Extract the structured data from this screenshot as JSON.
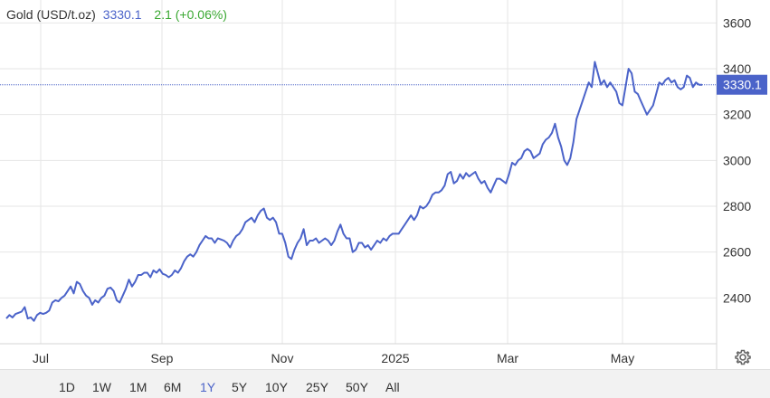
{
  "header": {
    "name": "Gold (USD/t.oz)",
    "last": "3330.1",
    "change": "2.1 (+0.06%)"
  },
  "colors": {
    "line": "#4b63c9",
    "change_positive": "#3aa832",
    "grid": "#e6e6e6",
    "range_bar": "#f2f2f2"
  },
  "ranges": {
    "items": [
      "1D",
      "1W",
      "1M",
      "6M",
      "1Y",
      "5Y",
      "10Y",
      "25Y",
      "50Y",
      "All"
    ],
    "active": "1Y"
  },
  "icons": {
    "settings": "gear-icon"
  },
  "chart_data": {
    "type": "line",
    "title": "Gold (USD/t.oz)",
    "x_ticks": [
      "Jul",
      "Sep",
      "Nov",
      "2025",
      "Mar",
      "May"
    ],
    "y_ticks": [
      "2400",
      "2600",
      "2800",
      "3000",
      "3200",
      "3400",
      "3600"
    ],
    "ylim": [
      2200,
      3700
    ],
    "grid": true,
    "last_value_label": "3330.1",
    "last_value": 3330.1,
    "series": [
      {
        "values": [
          2310,
          2325,
          2315,
          2330,
          2335,
          2340,
          2360,
          2310,
          2315,
          2300,
          2325,
          2335,
          2330,
          2335,
          2345,
          2380,
          2390,
          2385,
          2400,
          2410,
          2430,
          2450,
          2420,
          2470,
          2460,
          2430,
          2410,
          2400,
          2370,
          2390,
          2380,
          2400,
          2410,
          2440,
          2445,
          2430,
          2390,
          2380,
          2410,
          2440,
          2480,
          2450,
          2470,
          2500,
          2500,
          2510,
          2510,
          2490,
          2520,
          2510,
          2525,
          2505,
          2500,
          2490,
          2500,
          2520,
          2510,
          2530,
          2560,
          2580,
          2590,
          2580,
          2600,
          2630,
          2650,
          2670,
          2660,
          2660,
          2640,
          2660,
          2655,
          2650,
          2640,
          2620,
          2650,
          2670,
          2680,
          2700,
          2730,
          2740,
          2750,
          2730,
          2760,
          2780,
          2790,
          2750,
          2740,
          2750,
          2730,
          2680,
          2680,
          2640,
          2580,
          2570,
          2610,
          2640,
          2660,
          2700,
          2630,
          2650,
          2650,
          2660,
          2640,
          2650,
          2660,
          2650,
          2630,
          2650,
          2690,
          2720,
          2680,
          2660,
          2660,
          2600,
          2610,
          2640,
          2640,
          2620,
          2630,
          2610,
          2630,
          2650,
          2640,
          2660,
          2650,
          2670,
          2680,
          2680,
          2680,
          2700,
          2720,
          2740,
          2760,
          2740,
          2760,
          2800,
          2790,
          2800,
          2820,
          2850,
          2860,
          2860,
          2870,
          2890,
          2940,
          2950,
          2900,
          2910,
          2940,
          2920,
          2945,
          2930,
          2940,
          2950,
          2920,
          2900,
          2910,
          2880,
          2860,
          2890,
          2920,
          2920,
          2910,
          2900,
          2940,
          2990,
          2980,
          3000,
          3010,
          3040,
          3050,
          3040,
          3010,
          3020,
          3030,
          3070,
          3090,
          3100,
          3120,
          3160,
          3100,
          3060,
          3000,
          2980,
          3010,
          3080,
          3180,
          3220,
          3260,
          3300,
          3340,
          3320,
          3430,
          3380,
          3330,
          3350,
          3320,
          3340,
          3320,
          3300,
          3250,
          3240,
          3320,
          3400,
          3380,
          3300,
          3290,
          3260,
          3230,
          3200,
          3220,
          3240,
          3290,
          3340,
          3330,
          3350,
          3360,
          3340,
          3350,
          3320,
          3310,
          3320,
          3370,
          3360,
          3320,
          3340,
          3330,
          3330.1
        ]
      }
    ]
  }
}
